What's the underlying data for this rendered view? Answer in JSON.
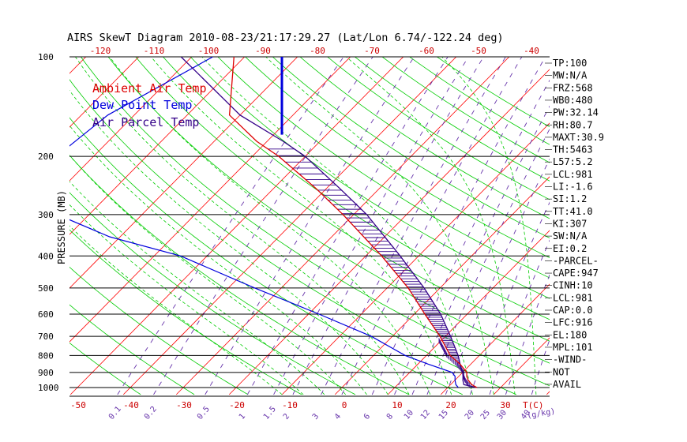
{
  "title": "AIRS SkewT Diagram 2010-08-23/21:17:29.27 (Lat/Lon 6.74/-122.24 deg)",
  "colors": {
    "ambient": "#dd0000",
    "dewpoint": "#0000dd",
    "parcel": "#330088",
    "isotherm": "#ff0000",
    "dry_adiabat": "#00cc00",
    "moist_adiabat": "#00cc00",
    "mixing_ratio": "#6633aa",
    "isobar": "#000000",
    "temp_tick": "#cc0000",
    "frame": "#000000"
  },
  "legend": {
    "ambient": "Ambient Air Temp",
    "dewpoint": "Dew Point Temp",
    "parcel": "Air Parcel Temp"
  },
  "axes": {
    "ylabel": "PRESSURE (MB)",
    "pressure_ticks": [
      "100",
      "200",
      "300",
      "400",
      "500",
      "600",
      "700",
      "800",
      "900",
      "1000"
    ],
    "top_temp_ticks": [
      "-120",
      "-110",
      "-100",
      "-90",
      "-80",
      "-70",
      "-60",
      "-50",
      "-40"
    ],
    "bottom_temp_ticks": [
      "-50",
      "-40",
      "-30",
      "-20",
      "-10",
      "0",
      "10",
      "20",
      "30"
    ],
    "bottom_unit": "T(C)",
    "mixing_ratio_labels": [
      "0.1",
      "0.2",
      "0.5",
      "1",
      "1.5",
      "2",
      "3",
      "4",
      "6",
      "8",
      "10",
      "12",
      "15",
      "20",
      "25",
      "30",
      "40"
    ],
    "mixing_unit": "(g/kg)"
  },
  "indices": [
    "TP:100",
    "MW:N/A",
    "FRZ:568",
    "WB0:480",
    "PW:32.14",
    "RH:80.7",
    "MAXT:30.9",
    "TH:5463",
    "L57:5.2",
    "LCL:981",
    "LI:-1.6",
    "SI:1.2",
    "TT:41.0",
    "KI:307",
    "SW:N/A",
    "EI:0.2",
    "-PARCEL-",
    "CAPE:947",
    "CINH:10",
    "LCL:981",
    "CAP:0.0",
    "LFC:916",
    "EL:180",
    "MPL:101",
    "-WIND-",
    "NOT",
    "AVAIL"
  ],
  "chart_data": {
    "type": "line",
    "title": "AIRS SkewT Diagram 2010-08-23/21:17:29.27 (Lat/Lon 6.74/-122.24 deg)",
    "ylabel": "PRESSURE (MB)",
    "xlabel": "T(C)",
    "ylim": [
      100,
      1000
    ],
    "y_scale": "log-pressure",
    "x_skewed": true,
    "series": [
      {
        "name": "Ambient Air Temp",
        "p": [
          1000,
          980,
          950,
          925,
          900,
          850,
          800,
          700,
          600,
          500,
          400,
          300,
          250,
          200,
          180,
          150,
          100
        ],
        "t": [
          25.5,
          24.0,
          22.5,
          21.5,
          20.8,
          18.0,
          14.5,
          9.0,
          2.0,
          -6.0,
          -17.0,
          -32.0,
          -42.0,
          -55.0,
          -62.0,
          -72.0,
          -82.0
        ]
      },
      {
        "name": "Dew Point Temp",
        "p": [
          1000,
          980,
          950,
          925,
          900,
          850,
          800,
          700,
          600,
          500,
          400,
          350,
          300,
          250,
          200,
          150,
          100
        ],
        "t": [
          22.0,
          21.0,
          20.0,
          19.3,
          18.0,
          12.0,
          6.0,
          -4.0,
          -18.0,
          -35.0,
          -55.0,
          -72.0,
          -86.0,
          -95.0,
          -97.0,
          -95.0,
          -86.0
        ]
      },
      {
        "name": "Air Parcel Temp",
        "p": [
          1000,
          980,
          950,
          925,
          900,
          850,
          800,
          700,
          600,
          500,
          400,
          300,
          250,
          200,
          180,
          150,
          100
        ],
        "t": [
          25.5,
          22.5,
          21.5,
          20.8,
          20.0,
          18.0,
          16.0,
          11.0,
          5.0,
          -3.0,
          -13.5,
          -27.5,
          -37.5,
          -50.0,
          -57.0,
          -70.0,
          -92.0
        ]
      }
    ],
    "indices": {
      "TP": "100",
      "MW": "N/A",
      "FRZ": "568",
      "WB0": "480",
      "PW": "32.14",
      "RH": "80.7",
      "MAXT": "30.9",
      "TH": "5463",
      "L57": "5.2",
      "LCL": "981",
      "LI": "-1.6",
      "SI": "1.2",
      "TT": "41.0",
      "KI": "307",
      "SW": "N/A",
      "EI": "0.2",
      "parcel": {
        "CAPE": "947",
        "CINH": "10",
        "LCL": "981",
        "CAP": "0.0",
        "LFC": "916",
        "EL": "180",
        "MPL": "101"
      },
      "wind": "NOT AVAIL"
    }
  }
}
